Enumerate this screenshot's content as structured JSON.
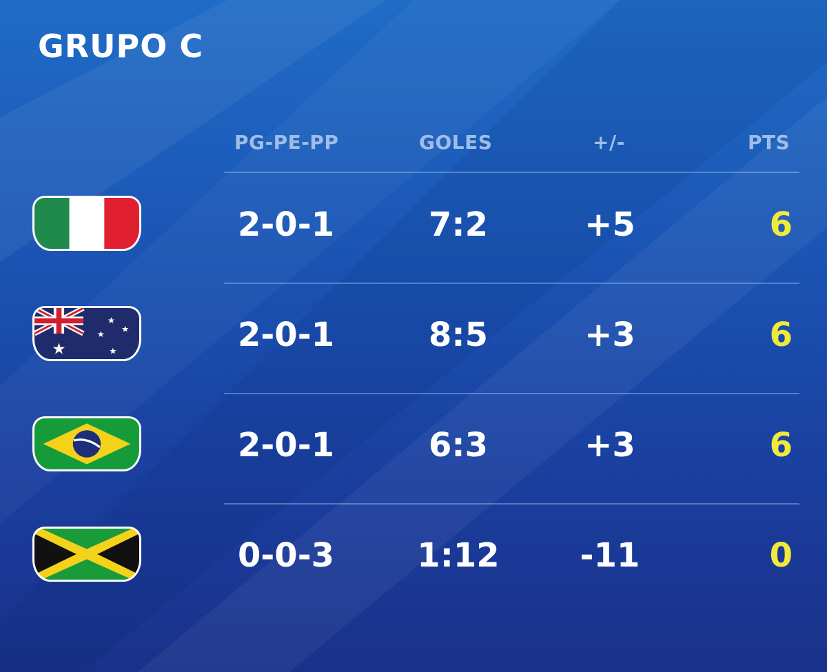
{
  "title": "GRUPO C",
  "columns": [
    "PG-PE-PP",
    "GOLES",
    "+/-",
    "PTS"
  ],
  "colors": {
    "pts": "#f2ea3b",
    "header": "#9fbde6",
    "text": "#ffffff"
  },
  "rows": [
    {
      "flag": "italy-flag",
      "record": "2-0-1",
      "goals": "7:2",
      "diff": "+5",
      "pts": "6"
    },
    {
      "flag": "australia-flag",
      "record": "2-0-1",
      "goals": "8:5",
      "diff": "+3",
      "pts": "6"
    },
    {
      "flag": "brazil-flag",
      "record": "2-0-1",
      "goals": "6:3",
      "diff": "+3",
      "pts": "6"
    },
    {
      "flag": "jamaica-flag",
      "record": "0-0-3",
      "goals": "1:12",
      "diff": "-11",
      "pts": "0"
    }
  ]
}
